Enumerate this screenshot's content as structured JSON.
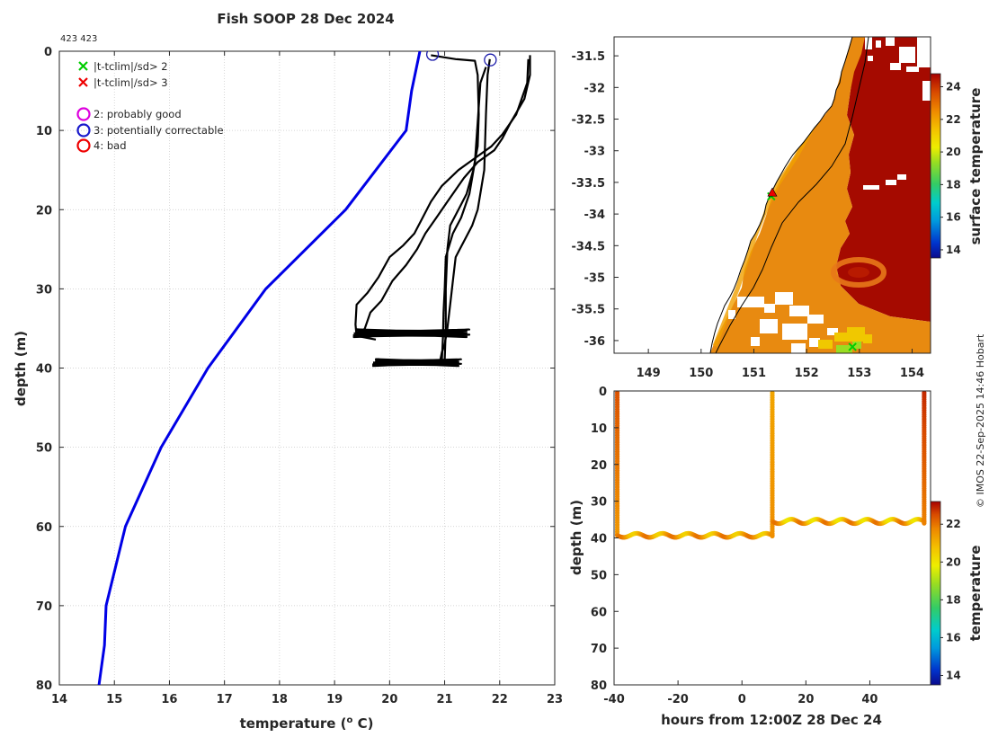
{
  "colors": {
    "climatology": "#0000e6",
    "profiles": "#000000",
    "flag3_circle": "#1a1aaa",
    "grid": "#c8c8c8",
    "land_outline": "#000000",
    "ocean_no_data": "#ffffff",
    "legend_x2": "#00cc00",
    "legend_x3": "#ee0000",
    "legend_o2": "#dd00dd",
    "legend_o3": "#1a1acc",
    "legend_o4": "#ee0000"
  },
  "credit": "© IMOS 22-Sep-2025 14:46 Hobart",
  "chart_data": [
    {
      "id": "profile",
      "type": "line",
      "title": "Fish SOOP 28 Dec 2024",
      "subtitle": "423 423",
      "xlabel": "temperature (",
      "xlabel_sup": "o",
      "xlabel_tail": " C)",
      "ylabel": "depth (m)",
      "xlim": [
        14,
        23
      ],
      "ylim": [
        0,
        80
      ],
      "y_reversed": true,
      "xticks": [
        14,
        15,
        16,
        17,
        18,
        19,
        20,
        21,
        22,
        23
      ],
      "yticks": [
        0,
        10,
        20,
        30,
        40,
        50,
        60,
        70,
        80
      ],
      "grid": true,
      "legend": {
        "placement": "top-left",
        "entries": [
          {
            "marker": "x",
            "color": "#00cc00",
            "label": "|t-tclim|/sd> 2"
          },
          {
            "marker": "x",
            "color": "#ee0000",
            "label": "|t-tclim|/sd> 3"
          },
          {
            "marker": "o",
            "color": "#dd00dd",
            "label": "2: probably good"
          },
          {
            "marker": "o",
            "color": "#1a1acc",
            "label": "3: potentially correctable"
          },
          {
            "marker": "o",
            "color": "#ee0000",
            "label": "4: bad"
          }
        ]
      },
      "series": [
        {
          "name": "climatology",
          "color": "#0000e6",
          "points": [
            [
              20.55,
              0
            ],
            [
              20.4,
              5
            ],
            [
              20.3,
              10
            ],
            [
              19.2,
              20
            ],
            [
              17.75,
              30
            ],
            [
              16.7,
              40
            ],
            [
              15.85,
              50
            ],
            [
              15.2,
              60
            ],
            [
              14.85,
              70
            ],
            [
              14.82,
              75
            ],
            [
              14.72,
              80
            ]
          ]
        },
        {
          "name": "profile A",
          "color": "#000000",
          "points": [
            [
              21.82,
              1
            ],
            [
              21.78,
              3
            ],
            [
              21.75,
              8
            ],
            [
              21.72,
              15
            ],
            [
              21.6,
              20
            ],
            [
              21.5,
              22
            ],
            [
              21.35,
              24
            ],
            [
              21.2,
              26
            ],
            [
              21.15,
              29
            ],
            [
              21.1,
              32
            ],
            [
              21.05,
              35
            ],
            [
              21.0,
              37
            ],
            [
              20.95,
              38
            ],
            [
              20.92,
              39
            ]
          ]
        },
        {
          "name": "profile B",
          "color": "#000000",
          "points": [
            [
              20.75,
              0.5
            ],
            [
              21.2,
              1
            ],
            [
              21.55,
              1.2
            ],
            [
              21.6,
              3
            ],
            [
              21.62,
              8
            ],
            [
              21.6,
              12
            ],
            [
              21.52,
              15
            ],
            [
              21.4,
              18
            ],
            [
              21.25,
              20
            ],
            [
              21.1,
              22
            ],
            [
              21.05,
              25
            ],
            [
              21.02,
              30
            ],
            [
              21.02,
              35
            ],
            [
              21.0,
              39
            ]
          ]
        },
        {
          "name": "profile C",
          "color": "#000000",
          "points": [
            [
              22.55,
              0.5
            ],
            [
              22.55,
              3
            ],
            [
              22.45,
              6
            ],
            [
              22.2,
              9
            ],
            [
              22.05,
              11
            ],
            [
              21.9,
              12.5
            ],
            [
              21.6,
              14
            ],
            [
              21.35,
              16
            ],
            [
              21.05,
              19
            ],
            [
              20.85,
              21
            ],
            [
              20.65,
              23
            ],
            [
              20.5,
              25
            ],
            [
              20.3,
              27
            ],
            [
              20.05,
              29
            ],
            [
              19.85,
              31.5
            ],
            [
              19.65,
              33
            ],
            [
              19.55,
              35
            ],
            [
              19.45,
              36
            ],
            [
              19.75,
              36.4
            ]
          ]
        },
        {
          "name": "profile D",
          "color": "#000000",
          "points": [
            [
              22.52,
              1
            ],
            [
              22.5,
              4
            ],
            [
              22.3,
              8
            ],
            [
              22.05,
              10.5
            ],
            [
              21.85,
              12
            ],
            [
              21.55,
              13.5
            ],
            [
              21.25,
              15
            ],
            [
              20.95,
              17
            ],
            [
              20.75,
              19
            ],
            [
              20.6,
              21
            ],
            [
              20.45,
              23
            ],
            [
              20.25,
              24.5
            ],
            [
              20.0,
              26
            ],
            [
              19.8,
              28.5
            ],
            [
              19.6,
              30.5
            ],
            [
              19.4,
              32
            ],
            [
              19.38,
              34.5
            ],
            [
              19.4,
              36
            ]
          ]
        },
        {
          "name": "profile E",
          "color": "#000000",
          "points": [
            [
              21.75,
              2
            ],
            [
              21.65,
              4
            ],
            [
              21.6,
              9
            ],
            [
              21.55,
              14
            ],
            [
              21.45,
              18
            ],
            [
              21.3,
              21
            ],
            [
              21.15,
              23
            ],
            [
              21.02,
              26
            ],
            [
              21.0,
              30
            ],
            [
              20.98,
              33
            ],
            [
              20.97,
              36
            ],
            [
              20.95,
              39
            ]
          ]
        }
      ],
      "oscillations": [
        {
          "depth_center": 35.6,
          "depth_amplitude": 0.5,
          "t_min": 19.35,
          "t_max": 21.45,
          "passes": 10
        },
        {
          "depth_center": 39.3,
          "depth_amplitude": 0.45,
          "t_min": 19.7,
          "t_max": 21.3,
          "passes": 10
        }
      ],
      "flag_circles": [
        {
          "temperature": 20.78,
          "depth": 0.4,
          "flag": "3"
        },
        {
          "temperature": 21.83,
          "depth": 1.1,
          "flag": "3"
        }
      ]
    },
    {
      "id": "sst-map",
      "type": "heatmap",
      "xticks": [
        149,
        150,
        151,
        152,
        153,
        154
      ],
      "yticks": [
        -31.5,
        -32,
        -32.5,
        -33,
        -33.5,
        -34,
        -34.5,
        -35,
        -35.5,
        -36
      ],
      "xlim": [
        148.35,
        154.35
      ],
      "ylim": [
        -36.2,
        -31.2
      ],
      "colorbar": {
        "label": "surface temperature",
        "range": [
          13.5,
          24.8
        ],
        "ticks": [
          24,
          22,
          20,
          18,
          16,
          14
        ]
      },
      "markers": [
        {
          "lon": 151.33,
          "lat": -33.72,
          "type": "x",
          "color": "#00cc00"
        },
        {
          "lon": 151.35,
          "lat": -33.66,
          "type": "triangle",
          "color": "#ee0000"
        },
        {
          "lon": 152.87,
          "lat": -36.1,
          "type": "x",
          "color": "#00cc00"
        }
      ]
    },
    {
      "id": "timeseries",
      "type": "scatter",
      "xlabel": "hours from 12:00Z 28 Dec 24",
      "ylabel": "depth (m)",
      "xlim": [
        -40,
        59
      ],
      "ylim": [
        0,
        80
      ],
      "y_reversed": true,
      "xticks": [
        -40,
        -20,
        0,
        20,
        40
      ],
      "yticks": [
        0,
        10,
        20,
        30,
        40,
        50,
        60,
        70,
        80
      ],
      "colorbar": {
        "label": "temperature",
        "range": [
          13.5,
          23.2
        ],
        "ticks": [
          22,
          20,
          18,
          16,
          14
        ]
      },
      "segments": [
        {
          "kind": "cast",
          "hour": -39,
          "depth_top": 0.5,
          "depth_bottom": 39,
          "temp_top": 22.4,
          "temp_bottom": 21.5
        },
        {
          "kind": "tow",
          "hour_start": -39,
          "hour_end": 9.5,
          "depth_mean": 39.3,
          "depth_amplitude": 0.55,
          "temp_min": 20.6,
          "temp_max": 22.0,
          "waves": 6
        },
        {
          "kind": "cast",
          "hour": 9.5,
          "depth_top": 0.5,
          "depth_bottom": 39.5,
          "temp_top": 21.3,
          "temp_bottom": 21.6
        },
        {
          "kind": "tow",
          "hour_start": 9.5,
          "hour_end": 57,
          "depth_mean": 35.5,
          "depth_amplitude": 0.6,
          "temp_min": 20.3,
          "temp_max": 22.0,
          "waves": 6
        },
        {
          "kind": "cast",
          "hour": 57,
          "depth_top": 0.5,
          "depth_bottom": 36,
          "temp_top": 22.8,
          "temp_bottom": 21.8
        }
      ]
    }
  ]
}
